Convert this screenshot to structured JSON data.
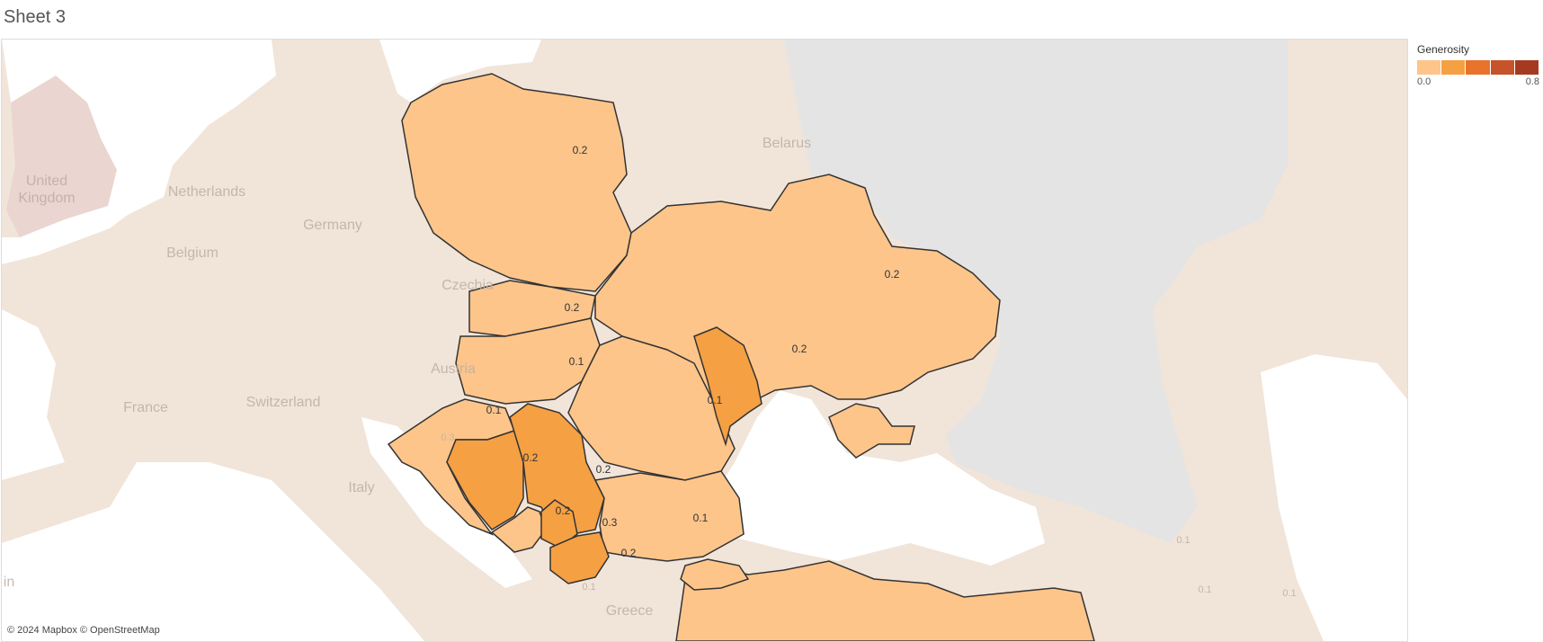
{
  "sheet_title": "Sheet 3",
  "attribution": "© 2024 Mapbox © OpenStreetMap",
  "legend": {
    "title": "Generosity",
    "min_label": "0.0",
    "max_label": "0.8",
    "colors": [
      "#fdc58a",
      "#f5a043",
      "#e8732b",
      "#c7532a",
      "#a63a20"
    ]
  },
  "colors": {
    "light": "#fdc58a",
    "medium": "#f5a043",
    "background_land": "#f1e4d9",
    "russia_region": "#e4e4e4",
    "sea": "#ffffff",
    "border": "#333333"
  },
  "background_labels": [
    {
      "id": "uk",
      "text": "United"
    },
    {
      "id": "uk2",
      "text": "Kingdom"
    },
    {
      "id": "nl",
      "text": "Netherlands"
    },
    {
      "id": "de",
      "text": "Germany"
    },
    {
      "id": "be",
      "text": "Belgium"
    },
    {
      "id": "cz",
      "text": "Czechia"
    },
    {
      "id": "at",
      "text": "Austria"
    },
    {
      "id": "ch",
      "text": "Switzerland"
    },
    {
      "id": "fr",
      "text": "France"
    },
    {
      "id": "it",
      "text": "Italy"
    },
    {
      "id": "by",
      "text": "Belarus"
    },
    {
      "id": "gr",
      "text": "Greece"
    },
    {
      "id": "es",
      "text": "in"
    }
  ],
  "background_values": [
    {
      "id": "tr_e1",
      "text": "0.1"
    },
    {
      "id": "tr_e2",
      "text": "0.1"
    },
    {
      "id": "tr_e3",
      "text": "0.1"
    },
    {
      "id": "gr_v",
      "text": "0.1"
    },
    {
      "id": "it_v",
      "text": "0.3"
    }
  ],
  "regions": [
    {
      "id": "poland",
      "value": "0.2",
      "level": "light"
    },
    {
      "id": "ukraine",
      "value": "0.2",
      "level": "light"
    },
    {
      "id": "slovakia",
      "value": "0.2",
      "level": "light"
    },
    {
      "id": "hungary",
      "value": "0.1",
      "level": "light"
    },
    {
      "id": "moldova",
      "value": "0.2",
      "level": "medium"
    },
    {
      "id": "romania",
      "value": "0.1",
      "level": "light"
    },
    {
      "id": "croatia",
      "value": "0.1",
      "level": "light"
    },
    {
      "id": "bosnia",
      "value": "0.2",
      "level": "medium"
    },
    {
      "id": "serbia",
      "value": "0.2",
      "level": "medium"
    },
    {
      "id": "montenegro",
      "value": "0.2",
      "level": "light"
    },
    {
      "id": "kosovo",
      "value": "0.3",
      "level": "medium"
    },
    {
      "id": "bulgaria",
      "value": "0.1",
      "level": "light"
    },
    {
      "id": "north-macedonia",
      "value": "0.2",
      "level": "medium"
    },
    {
      "id": "turkey",
      "value": "",
      "level": "light"
    }
  ]
}
